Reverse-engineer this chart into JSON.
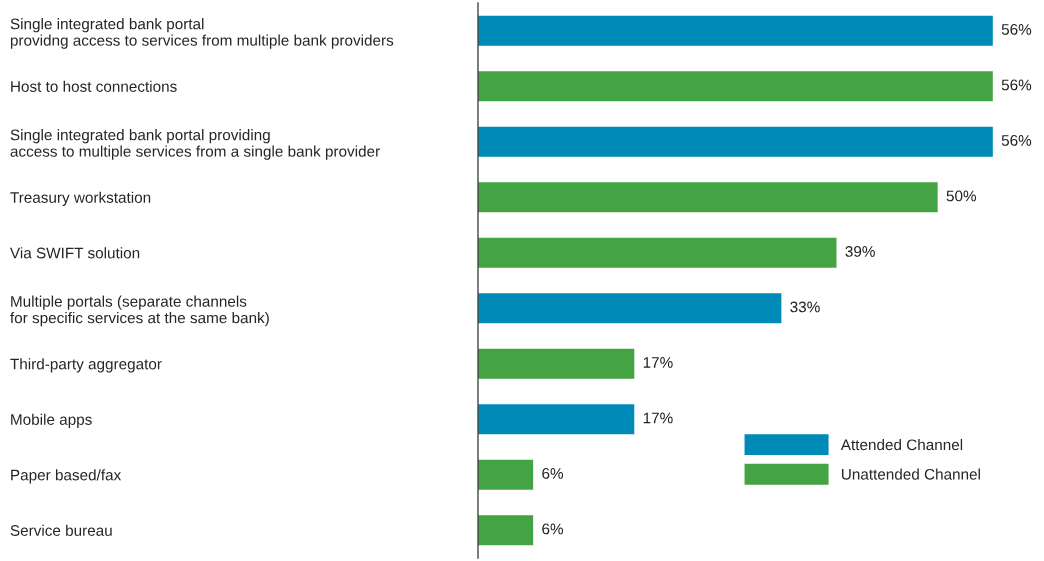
{
  "chart_data": {
    "type": "bar",
    "orientation": "horizontal",
    "categories": [
      "Single integrated bank portal\nprovidng access to services from multiple bank providers",
      "Host to host connections",
      "Single integrated bank portal providing\naccess to multiple services from a single bank provider",
      "Treasury workstation",
      "Via SWIFT solution",
      "Multiple portals (separate channels\nfor specific services at the same bank)",
      "Third-party aggregator",
      "Mobile apps",
      "Paper based/fax",
      "Service bureau"
    ],
    "series": [
      {
        "name": "Attended Channel",
        "color": "#008ab8",
        "values": [
          56,
          null,
          56,
          null,
          null,
          33,
          null,
          17,
          null,
          null
        ],
        "value_labels": [
          "56%",
          null,
          "56%",
          null,
          null,
          "33%",
          null,
          "17%",
          null,
          null
        ]
      },
      {
        "name": "Unattended Channel",
        "color": "#44a443",
        "values": [
          null,
          56,
          null,
          50,
          39,
          null,
          17,
          null,
          6,
          6
        ],
        "value_labels": [
          null,
          "56%",
          null,
          "50%",
          "39%",
          null,
          "17%",
          null,
          "6%",
          "6%"
        ]
      }
    ],
    "tick_labels": "y",
    "grid": false,
    "legend": "bottom right"
  }
}
